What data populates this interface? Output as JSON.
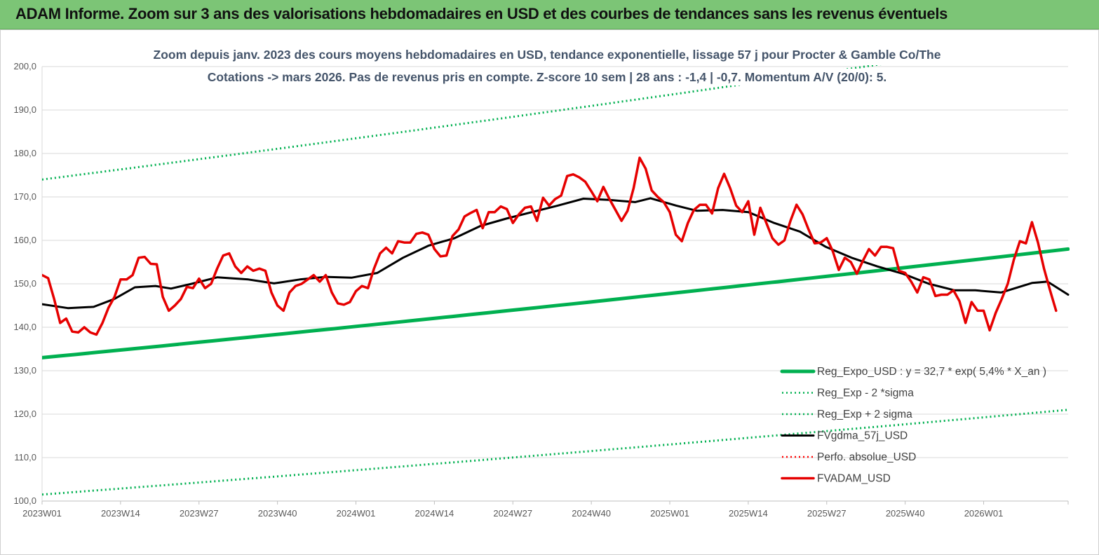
{
  "banner": {
    "title": "ADAM Informe. Zoom sur 3 ans des valorisations hebdomadaires en USD et des courbes de tendances sans les revenus éventuels",
    "color": "#7cc576"
  },
  "chart_data": {
    "type": "line",
    "title_line1": "Zoom depuis janv. 2023 des cours moyens hebdomadaires en USD, tendance exponentielle, lissage 57 j pour Procter & Gamble Co/The",
    "title_line2": "Cotations -> mars 2026. Pas de revenus pris en  compte. Z-score 10 sem  | 28 ans : -1,4 | -0,7. Momentum A/V (20/0): 5.",
    "ylim": [
      100,
      200
    ],
    "ytick_labels": [
      "100,0",
      "110,0",
      "120,0",
      "130,0",
      "140,0",
      "150,0",
      "160,0",
      "170,0",
      "180,0",
      "190,0",
      "200,0"
    ],
    "xtick_labels": [
      "2023W01",
      "2023W14",
      "2023W27",
      "2023W40",
      "2024W01",
      "2024W14",
      "2024W27",
      "2024W40",
      "2025W01",
      "2025W14",
      "2025W27",
      "2025W40",
      "2026W01"
    ],
    "n_weeks": 170,
    "grid": "horizontal",
    "legend_position": "bottom-right",
    "series": [
      {
        "name": "Reg_Expo_USD : y = 32,7 * exp( 5,4% *  X_an )",
        "style": "solid-thick",
        "color": "#00b050",
        "start_value": 133.0,
        "end_value": 158.0
      },
      {
        "name": "Reg_Exp - 2 *sigma",
        "style": "dotted",
        "color": "#00b050",
        "start_value": 101.5,
        "end_value": 121.0
      },
      {
        "name": "Reg_Exp + 2 sigma",
        "style": "dotted",
        "color": "#00b050",
        "start_value": 174.0,
        "end_value": 207.0
      },
      {
        "name": "FVgdma_57j_USD",
        "style": "solid",
        "color": "#000000",
        "points": [
          [
            0,
            145.3
          ],
          [
            5,
            144.4
          ],
          [
            10,
            144.7
          ],
          [
            14,
            146.5
          ],
          [
            18,
            149.2
          ],
          [
            22,
            149.5
          ],
          [
            25,
            148.9
          ],
          [
            29,
            150.0
          ],
          [
            34,
            151.5
          ],
          [
            40,
            151.0
          ],
          [
            45,
            150.1
          ],
          [
            50,
            151.0
          ],
          [
            55,
            151.6
          ],
          [
            60,
            151.4
          ],
          [
            65,
            152.5
          ],
          [
            70,
            156.0
          ],
          [
            75,
            158.8
          ],
          [
            80,
            160.5
          ],
          [
            85,
            163.3
          ],
          [
            90,
            165.0
          ],
          [
            95,
            166.5
          ],
          [
            100,
            168.0
          ],
          [
            105,
            169.6
          ],
          [
            110,
            169.3
          ],
          [
            115,
            168.8
          ],
          [
            118,
            169.7
          ],
          [
            123,
            168.0
          ],
          [
            127,
            166.8
          ],
          [
            132,
            167.0
          ],
          [
            137,
            166.5
          ],
          [
            142,
            164.0
          ],
          [
            147,
            162.0
          ],
          [
            152,
            158.5
          ],
          [
            157,
            156.0
          ],
          [
            162,
            154.0
          ],
          [
            167,
            152.3
          ],
          [
            172,
            150.0
          ],
          [
            177,
            148.5
          ],
          [
            181,
            148.5
          ],
          [
            186,
            148.0
          ],
          [
            192,
            150.2
          ],
          [
            195,
            150.5
          ],
          [
            199,
            147.5
          ]
        ]
      },
      {
        "name": "Perfo. absolue_USD",
        "style": "dotted",
        "color": "#ff0000"
      },
      {
        "name": "FVADAM_USD",
        "style": "solid",
        "color": "#e60000",
        "points": [
          [
            0,
            152.0
          ],
          [
            1,
            151.3
          ],
          [
            2,
            146.5
          ],
          [
            3,
            141.0
          ],
          [
            4,
            142.0
          ],
          [
            5,
            139.0
          ],
          [
            6,
            138.8
          ],
          [
            7,
            140.0
          ],
          [
            8,
            138.8
          ],
          [
            9,
            138.3
          ],
          [
            10,
            141.0
          ],
          [
            11,
            144.5
          ],
          [
            12,
            147.0
          ],
          [
            13,
            151.0
          ],
          [
            14,
            151.0
          ],
          [
            15,
            152.0
          ],
          [
            16,
            156.0
          ],
          [
            17,
            156.2
          ],
          [
            18,
            154.6
          ],
          [
            19,
            154.5
          ],
          [
            20,
            147.0
          ],
          [
            21,
            143.8
          ],
          [
            22,
            145.0
          ],
          [
            23,
            146.5
          ],
          [
            24,
            149.3
          ],
          [
            25,
            149.0
          ],
          [
            26,
            151.2
          ],
          [
            27,
            149.0
          ],
          [
            28,
            150.0
          ],
          [
            29,
            153.5
          ],
          [
            30,
            156.5
          ],
          [
            31,
            157.0
          ],
          [
            32,
            154.0
          ],
          [
            33,
            152.5
          ],
          [
            34,
            154.0
          ],
          [
            35,
            153.0
          ],
          [
            36,
            153.5
          ],
          [
            37,
            153.0
          ],
          [
            38,
            148.0
          ],
          [
            39,
            145.0
          ],
          [
            40,
            143.8
          ],
          [
            41,
            148.0
          ],
          [
            42,
            149.5
          ],
          [
            43,
            150.0
          ],
          [
            44,
            151.0
          ],
          [
            45,
            152.0
          ],
          [
            46,
            150.5
          ],
          [
            47,
            152.0
          ],
          [
            48,
            148.0
          ],
          [
            49,
            145.5
          ],
          [
            50,
            145.2
          ],
          [
            51,
            145.8
          ],
          [
            52,
            148.3
          ],
          [
            53,
            149.5
          ],
          [
            54,
            149.0
          ],
          [
            55,
            153.5
          ],
          [
            56,
            157.0
          ],
          [
            57,
            158.3
          ],
          [
            58,
            157.0
          ],
          [
            59,
            159.8
          ],
          [
            60,
            159.5
          ],
          [
            61,
            159.5
          ],
          [
            62,
            161.5
          ],
          [
            63,
            161.8
          ],
          [
            64,
            161.3
          ],
          [
            65,
            158.0
          ],
          [
            66,
            156.3
          ],
          [
            67,
            156.5
          ],
          [
            68,
            161.0
          ],
          [
            69,
            162.5
          ],
          [
            70,
            165.5
          ],
          [
            71,
            166.3
          ],
          [
            72,
            167.0
          ],
          [
            73,
            162.8
          ],
          [
            74,
            166.5
          ],
          [
            75,
            166.5
          ],
          [
            76,
            167.8
          ],
          [
            77,
            167.2
          ],
          [
            78,
            164.0
          ],
          [
            79,
            166.0
          ],
          [
            80,
            167.5
          ],
          [
            81,
            167.8
          ],
          [
            82,
            164.5
          ],
          [
            83,
            169.8
          ],
          [
            84,
            168.0
          ],
          [
            85,
            169.5
          ],
          [
            86,
            170.3
          ],
          [
            87,
            174.8
          ],
          [
            88,
            175.2
          ],
          [
            89,
            174.5
          ],
          [
            90,
            173.5
          ],
          [
            91,
            171.3
          ],
          [
            92,
            169.0
          ],
          [
            93,
            172.3
          ],
          [
            94,
            169.5
          ],
          [
            95,
            167.0
          ],
          [
            96,
            164.5
          ],
          [
            97,
            166.8
          ],
          [
            98,
            172.0
          ],
          [
            99,
            179.0
          ],
          [
            100,
            176.5
          ],
          [
            101,
            171.5
          ],
          [
            102,
            170.0
          ],
          [
            103,
            168.8
          ],
          [
            104,
            166.5
          ],
          [
            105,
            161.3
          ],
          [
            106,
            159.8
          ],
          [
            107,
            164.0
          ],
          [
            108,
            167.0
          ],
          [
            109,
            168.2
          ],
          [
            110,
            168.2
          ],
          [
            111,
            166.2
          ],
          [
            112,
            172.0
          ],
          [
            113,
            175.3
          ],
          [
            114,
            172.0
          ],
          [
            115,
            168.0
          ],
          [
            116,
            166.5
          ],
          [
            117,
            169.0
          ],
          [
            118,
            161.3
          ],
          [
            119,
            167.5
          ],
          [
            120,
            164.0
          ],
          [
            121,
            160.5
          ],
          [
            122,
            159.0
          ],
          [
            123,
            160.0
          ],
          [
            124,
            164.5
          ],
          [
            125,
            168.2
          ],
          [
            126,
            166.0
          ],
          [
            127,
            162.5
          ],
          [
            128,
            159.3
          ],
          [
            129,
            159.5
          ],
          [
            130,
            160.5
          ],
          [
            131,
            157.5
          ],
          [
            132,
            153.2
          ],
          [
            133,
            156.0
          ],
          [
            134,
            155.0
          ],
          [
            135,
            152.3
          ],
          [
            136,
            155.3
          ],
          [
            137,
            158.0
          ],
          [
            138,
            156.5
          ],
          [
            139,
            158.5
          ],
          [
            140,
            158.5
          ],
          [
            141,
            158.2
          ],
          [
            142,
            153.0
          ],
          [
            143,
            152.5
          ],
          [
            144,
            150.5
          ],
          [
            145,
            148.0
          ],
          [
            146,
            151.5
          ],
          [
            147,
            151.0
          ],
          [
            148,
            147.2
          ],
          [
            149,
            147.5
          ],
          [
            150,
            147.5
          ],
          [
            151,
            148.5
          ],
          [
            152,
            146.0
          ],
          [
            153,
            141.0
          ],
          [
            154,
            145.8
          ],
          [
            155,
            143.8
          ],
          [
            156,
            143.8
          ],
          [
            157,
            139.3
          ],
          [
            158,
            143.3
          ],
          [
            159,
            146.5
          ],
          [
            160,
            150.0
          ],
          [
            161,
            155.5
          ],
          [
            162,
            159.8
          ],
          [
            163,
            159.3
          ],
          [
            164,
            164.2
          ],
          [
            165,
            159.5
          ],
          [
            166,
            153.5
          ],
          [
            167,
            148.5
          ],
          [
            168,
            143.8
          ]
        ]
      }
    ]
  }
}
